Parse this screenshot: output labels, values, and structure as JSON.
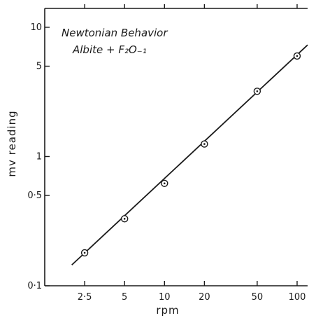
{
  "chart_data": {
    "type": "scatter",
    "xscale": "log",
    "yscale": "log",
    "xlim": [
      1.25,
      120
    ],
    "ylim": [
      0.1,
      14
    ],
    "xlabel": "rpm",
    "ylabel": "mv reading",
    "x_ticks": [
      {
        "value": 2.5,
        "label": "2·5"
      },
      {
        "value": 5,
        "label": "5"
      },
      {
        "value": 10,
        "label": "10"
      },
      {
        "value": 20,
        "label": "20"
      },
      {
        "value": 50,
        "label": "50"
      },
      {
        "value": 100,
        "label": "100"
      }
    ],
    "y_ticks": [
      {
        "value": 0.1,
        "label": "0·1"
      },
      {
        "value": 0.5,
        "label": "0·5"
      },
      {
        "value": 1,
        "label": "1"
      },
      {
        "value": 5,
        "label": "5"
      },
      {
        "value": 10,
        "label": "10"
      }
    ],
    "annotation_lines": [
      "Newtonian Behavior",
      "Albite + F₂O₋₁"
    ],
    "series": [
      {
        "points": [
          {
            "x": 2.5,
            "y": 0.18
          },
          {
            "x": 5,
            "y": 0.33
          },
          {
            "x": 10,
            "y": 0.62
          },
          {
            "x": 20,
            "y": 1.25
          },
          {
            "x": 50,
            "y": 3.2
          },
          {
            "x": 100,
            "y": 6.0
          }
        ],
        "fit_line": {
          "x_start": 2.0,
          "y_start": 0.145,
          "x_end": 120,
          "y_end": 7.3
        }
      }
    ],
    "grid": false,
    "legend": "none"
  }
}
